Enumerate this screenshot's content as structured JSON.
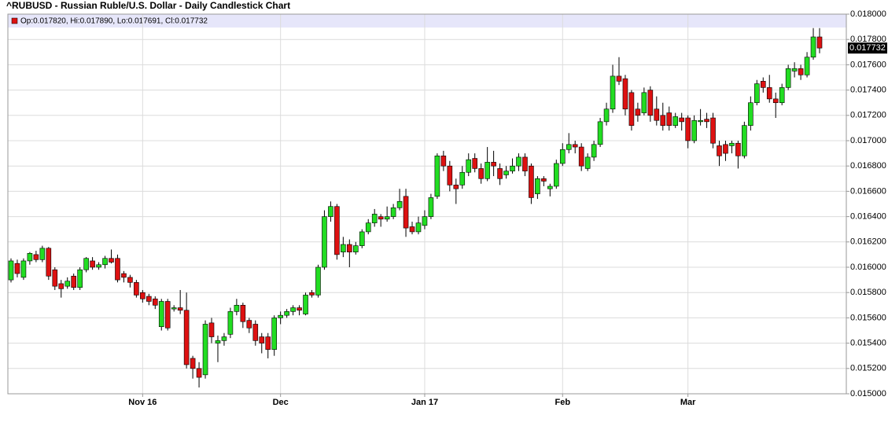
{
  "chart_data": {
    "type": "candlestick",
    "title": "^RUBUSD - Russian Ruble/U.S. Dollar - Daily Candlestick Chart",
    "legend": "Op:0.017820, Hi:0.017890, Lo:0.017691, Cl:0.017732",
    "up_color": "#22dd22",
    "down_color": "#dd1111",
    "grid": true,
    "ylim": [
      0.015,
      0.018
    ],
    "yticks": [
      {
        "value": 0.015,
        "label": "0.015000"
      },
      {
        "value": 0.0152,
        "label": "0.015200"
      },
      {
        "value": 0.0154,
        "label": "0.015400"
      },
      {
        "value": 0.0156,
        "label": "0.015600"
      },
      {
        "value": 0.0158,
        "label": "0.015800"
      },
      {
        "value": 0.016,
        "label": "0.016000"
      },
      {
        "value": 0.0162,
        "label": "0.016200"
      },
      {
        "value": 0.0164,
        "label": "0.016400"
      },
      {
        "value": 0.0166,
        "label": "0.016600"
      },
      {
        "value": 0.0168,
        "label": "0.016800"
      },
      {
        "value": 0.017,
        "label": "0.017000"
      },
      {
        "value": 0.0172,
        "label": "0.017200"
      },
      {
        "value": 0.0174,
        "label": "0.017400"
      },
      {
        "value": 0.0176,
        "label": "0.017600"
      },
      {
        "value": 0.0178,
        "label": "0.017800"
      },
      {
        "value": 0.018,
        "label": "0.018000"
      }
    ],
    "last_price": {
      "value": 0.017732,
      "label": "0.017732"
    },
    "categories": [
      null,
      null,
      null,
      null,
      null,
      null,
      null,
      null,
      null,
      null,
      null,
      null,
      null,
      null,
      null,
      null,
      null,
      null,
      null,
      null,
      null,
      "Nov 16",
      null,
      null,
      null,
      null,
      null,
      null,
      null,
      null,
      null,
      null,
      null,
      null,
      null,
      null,
      null,
      null,
      null,
      null,
      null,
      null,
      null,
      "Dec",
      null,
      null,
      null,
      null,
      null,
      null,
      null,
      null,
      null,
      null,
      null,
      null,
      null,
      null,
      null,
      null,
      null,
      null,
      null,
      null,
      null,
      null,
      "Jan 17",
      null,
      null,
      null,
      null,
      null,
      null,
      null,
      null,
      null,
      null,
      null,
      null,
      null,
      null,
      null,
      null,
      null,
      null,
      null,
      null,
      null,
      "Feb",
      null,
      null,
      null,
      null,
      null,
      null,
      null,
      null,
      null,
      null,
      null,
      null,
      null,
      null,
      null,
      null,
      null,
      null,
      null,
      "Mar",
      null,
      null,
      null,
      null,
      null,
      null,
      null,
      null,
      null,
      null,
      null,
      null,
      null,
      null,
      null,
      null,
      null,
      null,
      null,
      null,
      null
    ],
    "ohlc": [
      [
        0.0159,
        0.01607,
        0.01588,
        0.01605
      ],
      [
        0.01603,
        0.01606,
        0.01592,
        0.01595
      ],
      [
        0.01592,
        0.01607,
        0.0159,
        0.01605
      ],
      [
        0.01605,
        0.01612,
        0.01602,
        0.01611
      ],
      [
        0.0161,
        0.01613,
        0.01604,
        0.01606
      ],
      [
        0.01606,
        0.01617,
        0.01604,
        0.01615
      ],
      [
        0.01615,
        0.01616,
        0.0159,
        0.01593
      ],
      [
        0.01598,
        0.016,
        0.01582,
        0.01585
      ],
      [
        0.01587,
        0.0159,
        0.01576,
        0.01583
      ],
      [
        0.01585,
        0.01592,
        0.01583,
        0.01589
      ],
      [
        0.01593,
        0.01595,
        0.01582,
        0.01584
      ],
      [
        0.01584,
        0.016,
        0.01582,
        0.01598
      ],
      [
        0.01598,
        0.01608,
        0.01596,
        0.01607
      ],
      [
        0.01605,
        0.01608,
        0.01598,
        0.016
      ],
      [
        0.016,
        0.01604,
        0.01598,
        0.01602
      ],
      [
        0.01602,
        0.01609,
        0.01599,
        0.01607
      ],
      [
        0.01607,
        0.01614,
        0.01603,
        0.01604
      ],
      [
        0.01607,
        0.0161,
        0.01588,
        0.0159
      ],
      [
        0.01595,
        0.01597,
        0.01588,
        0.01592
      ],
      [
        0.01592,
        0.01594,
        0.01584,
        0.01588
      ],
      [
        0.01588,
        0.0159,
        0.01576,
        0.01578
      ],
      [
        0.0158,
        0.01582,
        0.01572,
        0.01575
      ],
      [
        0.01577,
        0.01579,
        0.0157,
        0.01573
      ],
      [
        0.01575,
        0.01577,
        0.01567,
        0.0157
      ],
      [
        0.01553,
        0.01575,
        0.0155,
        0.01573
      ],
      [
        0.01573,
        0.01575,
        0.0155,
        0.01552
      ],
      [
        0.01567,
        0.0157,
        0.01565,
        0.01568
      ],
      [
        0.01568,
        0.01582,
        0.01563,
        0.01566
      ],
      [
        0.01566,
        0.0158,
        0.0152,
        0.01523
      ],
      [
        0.01528,
        0.0153,
        0.01512,
        0.0152
      ],
      [
        0.0152,
        0.01525,
        0.01505,
        0.01513
      ],
      [
        0.01515,
        0.01558,
        0.01512,
        0.01555
      ],
      [
        0.01556,
        0.0156,
        0.0154,
        0.01545
      ],
      [
        0.0154,
        0.01546,
        0.01525,
        0.01542
      ],
      [
        0.01542,
        0.01548,
        0.01538,
        0.01545
      ],
      [
        0.01547,
        0.01568,
        0.01544,
        0.01565
      ],
      [
        0.01565,
        0.01575,
        0.01562,
        0.0157
      ],
      [
        0.0157,
        0.01572,
        0.01552,
        0.01557
      ],
      [
        0.01558,
        0.0156,
        0.01548,
        0.01552
      ],
      [
        0.01555,
        0.01558,
        0.01538,
        0.01542
      ],
      [
        0.01545,
        0.01548,
        0.01532,
        0.0154
      ],
      [
        0.01545,
        0.01548,
        0.01528,
        0.01535
      ],
      [
        0.01535,
        0.01562,
        0.0153,
        0.0156
      ],
      [
        0.0156,
        0.01565,
        0.01555,
        0.01562
      ],
      [
        0.01562,
        0.01567,
        0.0156,
        0.01565
      ],
      [
        0.01565,
        0.0157,
        0.01562,
        0.01568
      ],
      [
        0.01568,
        0.0157,
        0.01562,
        0.01566
      ],
      [
        0.01563,
        0.0158,
        0.01562,
        0.01578
      ],
      [
        0.0158,
        0.01582,
        0.01576,
        0.01578
      ],
      [
        0.01578,
        0.01602,
        0.01576,
        0.016
      ],
      [
        0.016,
        0.01645,
        0.01598,
        0.0164
      ],
      [
        0.0164,
        0.01652,
        0.01636,
        0.01648
      ],
      [
        0.01648,
        0.0165,
        0.01606,
        0.0161
      ],
      [
        0.01612,
        0.01624,
        0.01608,
        0.01618
      ],
      [
        0.01618,
        0.01622,
        0.016,
        0.01612
      ],
      [
        0.01612,
        0.0162,
        0.0161,
        0.01617
      ],
      [
        0.01617,
        0.0163,
        0.01615,
        0.01628
      ],
      [
        0.01628,
        0.01638,
        0.01626,
        0.01635
      ],
      [
        0.01635,
        0.01646,
        0.01632,
        0.01642
      ],
      [
        0.0164,
        0.01642,
        0.01632,
        0.01638
      ],
      [
        0.01638,
        0.01648,
        0.01636,
        0.0164
      ],
      [
        0.0164,
        0.0165,
        0.01638,
        0.01647
      ],
      [
        0.01647,
        0.01662,
        0.01645,
        0.01652
      ],
      [
        0.01656,
        0.01662,
        0.01624,
        0.01631
      ],
      [
        0.01632,
        0.01636,
        0.01626,
        0.01628
      ],
      [
        0.01628,
        0.0164,
        0.01626,
        0.01635
      ],
      [
        0.01633,
        0.01645,
        0.0163,
        0.0164
      ],
      [
        0.0164,
        0.01658,
        0.01638,
        0.01655
      ],
      [
        0.01656,
        0.0169,
        0.01654,
        0.01688
      ],
      [
        0.01688,
        0.01692,
        0.01676,
        0.0168
      ],
      [
        0.0168,
        0.01684,
        0.0166,
        0.01665
      ],
      [
        0.01665,
        0.0167,
        0.0165,
        0.01662
      ],
      [
        0.01665,
        0.0168,
        0.01662,
        0.01675
      ],
      [
        0.01675,
        0.0169,
        0.01672,
        0.01685
      ],
      [
        0.01686,
        0.0169,
        0.01675,
        0.01678
      ],
      [
        0.01678,
        0.01682,
        0.01666,
        0.0167
      ],
      [
        0.0167,
        0.01695,
        0.01668,
        0.01683
      ],
      [
        0.01683,
        0.01692,
        0.01672,
        0.0168
      ],
      [
        0.01678,
        0.01682,
        0.01665,
        0.0167
      ],
      [
        0.01673,
        0.0168,
        0.0167,
        0.01676
      ],
      [
        0.01676,
        0.01686,
        0.01674,
        0.0168
      ],
      [
        0.0168,
        0.0169,
        0.01676,
        0.01687
      ],
      [
        0.01687,
        0.0169,
        0.01672,
        0.01676
      ],
      [
        0.0168,
        0.01682,
        0.0165,
        0.01655
      ],
      [
        0.01658,
        0.01672,
        0.01654,
        0.0167
      ],
      [
        0.0167,
        0.01672,
        0.01664,
        0.01668
      ],
      [
        0.01662,
        0.01666,
        0.01656,
        0.01664
      ],
      [
        0.01664,
        0.01685,
        0.01662,
        0.01682
      ],
      [
        0.01682,
        0.01698,
        0.0168,
        0.01693
      ],
      [
        0.01693,
        0.01706,
        0.0169,
        0.01697
      ],
      [
        0.01697,
        0.017,
        0.0169,
        0.01695
      ],
      [
        0.01695,
        0.01698,
        0.01676,
        0.0168
      ],
      [
        0.01678,
        0.0169,
        0.01676,
        0.01687
      ],
      [
        0.01687,
        0.017,
        0.01684,
        0.01697
      ],
      [
        0.01697,
        0.01718,
        0.01695,
        0.01715
      ],
      [
        0.01715,
        0.0173,
        0.01712,
        0.01725
      ],
      [
        0.01725,
        0.0176,
        0.01722,
        0.01751
      ],
      [
        0.01751,
        0.01766,
        0.01744,
        0.01747
      ],
      [
        0.01749,
        0.01752,
        0.0172,
        0.01725
      ],
      [
        0.01738,
        0.0174,
        0.01708,
        0.01712
      ],
      [
        0.01725,
        0.0173,
        0.01715,
        0.0172
      ],
      [
        0.01722,
        0.01742,
        0.0172,
        0.01738
      ],
      [
        0.0174,
        0.01743,
        0.01715,
        0.0172
      ],
      [
        0.01725,
        0.01735,
        0.01712,
        0.01716
      ],
      [
        0.0172,
        0.0173,
        0.01708,
        0.01712
      ],
      [
        0.01722,
        0.01727,
        0.01708,
        0.01712
      ],
      [
        0.01712,
        0.01722,
        0.0171,
        0.01719
      ],
      [
        0.01718,
        0.01722,
        0.01708,
        0.01715
      ],
      [
        0.01718,
        0.0172,
        0.01694,
        0.017
      ],
      [
        0.017,
        0.0172,
        0.01698,
        0.01716
      ],
      [
        0.01715,
        0.01725,
        0.01712,
        0.01716
      ],
      [
        0.01717,
        0.01722,
        0.0171,
        0.01715
      ],
      [
        0.01718,
        0.01722,
        0.01694,
        0.01698
      ],
      [
        0.01696,
        0.017,
        0.0168,
        0.01688
      ],
      [
        0.01697,
        0.017,
        0.01684,
        0.0169
      ],
      [
        0.01696,
        0.017,
        0.0169,
        0.01698
      ],
      [
        0.01698,
        0.017,
        0.01678,
        0.01688
      ],
      [
        0.01688,
        0.01715,
        0.01686,
        0.01712
      ],
      [
        0.01712,
        0.01735,
        0.01708,
        0.0173
      ],
      [
        0.0173,
        0.01748,
        0.01728,
        0.01745
      ],
      [
        0.01747,
        0.0175,
        0.01738,
        0.01742
      ],
      [
        0.01742,
        0.01752,
        0.0173,
        0.01733
      ],
      [
        0.01733,
        0.01738,
        0.01718,
        0.0173
      ],
      [
        0.0173,
        0.01745,
        0.01728,
        0.01742
      ],
      [
        0.01742,
        0.0176,
        0.0174,
        0.01757
      ],
      [
        0.01755,
        0.01762,
        0.0175,
        0.01757
      ],
      [
        0.01757,
        0.0176,
        0.01748,
        0.01752
      ],
      [
        0.01752,
        0.0177,
        0.0175,
        0.01766
      ],
      [
        0.01766,
        0.01789,
        0.01764,
        0.01782
      ],
      [
        0.01782,
        0.01789,
        0.017691,
        0.017732
      ]
    ]
  }
}
